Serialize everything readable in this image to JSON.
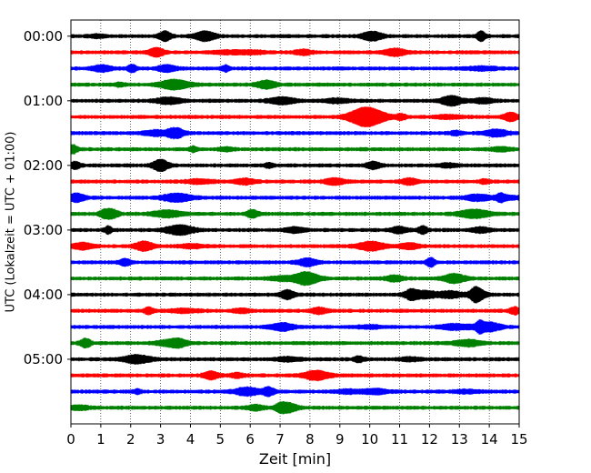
{
  "chart_data": {
    "type": "line",
    "title": "",
    "xlabel": "Zeit  [min]",
    "ylabel": "UTC (Lokalzeit = UTC + 01:00)",
    "xlim": [
      0,
      15
    ],
    "x_ticks": [
      "0",
      "1",
      "2",
      "3",
      "4",
      "5",
      "6",
      "7",
      "8",
      "9",
      "10",
      "11",
      "12",
      "13",
      "14",
      "15"
    ],
    "y_ticks": [
      "00:00",
      "01:00",
      "02:00",
      "03:00",
      "04:00",
      "05:00"
    ],
    "trace_interval_min": 15,
    "trace_count": 24,
    "color_cycle": [
      "#000000",
      "#ff0000",
      "#0000ff",
      "#008000"
    ],
    "grid": {
      "x": "dotted",
      "y": "none"
    },
    "legend": "none"
  }
}
